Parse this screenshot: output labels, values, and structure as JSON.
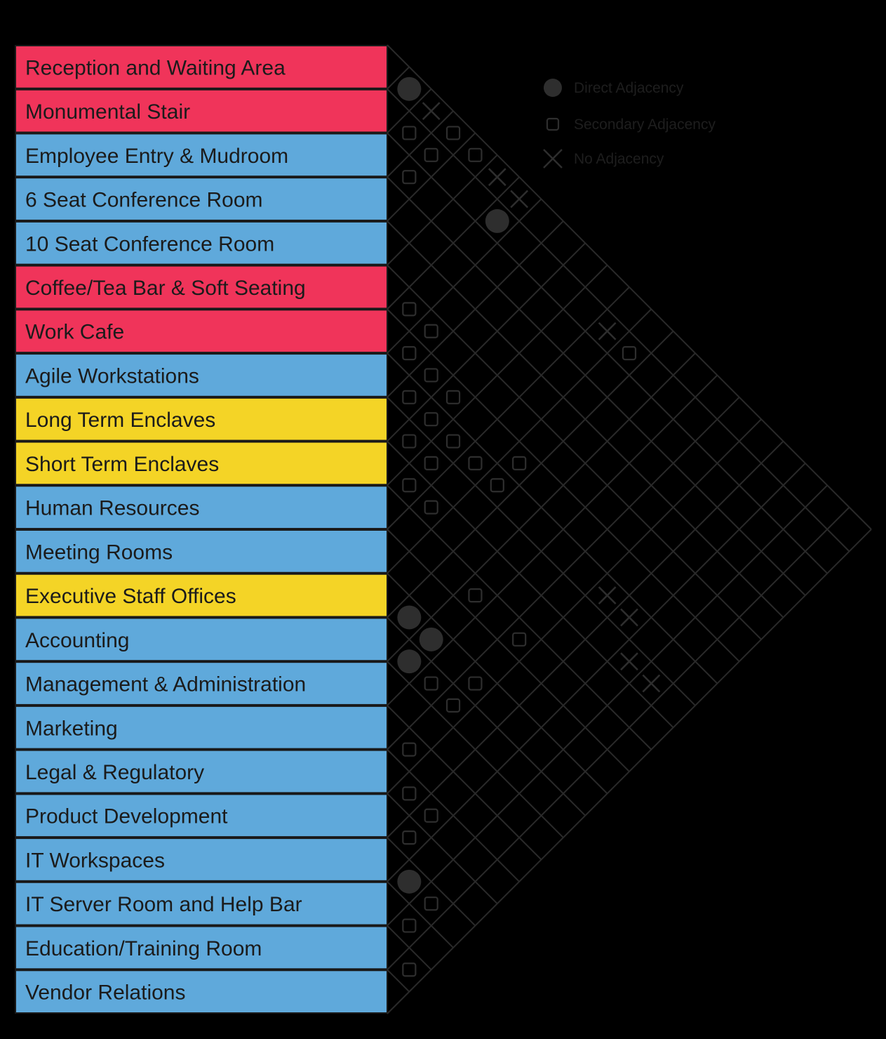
{
  "colors": {
    "background": "#000000",
    "red": "#f0345a",
    "blue": "#5fa9db",
    "yellow": "#f4d426",
    "grid": "#2a2a2a",
    "mark": "#2e2e2e"
  },
  "rooms": [
    {
      "label": "Reception and Waiting Area",
      "color": "red"
    },
    {
      "label": "Monumental Stair",
      "color": "red"
    },
    {
      "label": "Employee Entry & Mudroom",
      "color": "blue"
    },
    {
      "label": "6 Seat Conference Room",
      "color": "blue"
    },
    {
      "label": "10 Seat Conference Room",
      "color": "blue"
    },
    {
      "label": "Coffee/Tea Bar & Soft Seating",
      "color": "red"
    },
    {
      "label": "Work Cafe",
      "color": "red"
    },
    {
      "label": "Agile Workstations",
      "color": "blue"
    },
    {
      "label": "Long Term Enclaves",
      "color": "yellow"
    },
    {
      "label": "Short Term Enclaves",
      "color": "yellow"
    },
    {
      "label": "Human Resources",
      "color": "blue"
    },
    {
      "label": "Meeting Rooms",
      "color": "blue"
    },
    {
      "label": "Executive Staff Offices",
      "color": "yellow"
    },
    {
      "label": "Accounting",
      "color": "blue"
    },
    {
      "label": "Management & Administration",
      "color": "blue"
    },
    {
      "label": "Marketing",
      "color": "blue"
    },
    {
      "label": "Legal & Regulatory",
      "color": "blue"
    },
    {
      "label": "Product Development",
      "color": "blue"
    },
    {
      "label": "IT Workspaces",
      "color": "blue"
    },
    {
      "label": "IT Server Room and Help Bar",
      "color": "blue"
    },
    {
      "label": "Education/Training Room",
      "color": "blue"
    },
    {
      "label": "Vendor Relations",
      "color": "blue"
    }
  ],
  "legend": [
    {
      "symbol": "circle",
      "label": "Direct Adjacency",
      "icon": "filled-circle-icon"
    },
    {
      "symbol": "square",
      "label": "Secondary Adjacency",
      "icon": "rounded-square-icon"
    },
    {
      "symbol": "x",
      "label": "No Adjacency",
      "icon": "x-cross-icon"
    }
  ],
  "adjacencies": [
    {
      "a": 0,
      "b": 1,
      "type": "circle"
    },
    {
      "a": 0,
      "b": 2,
      "type": "x"
    },
    {
      "a": 0,
      "b": 3,
      "type": "square"
    },
    {
      "a": 0,
      "b": 4,
      "type": "square"
    },
    {
      "a": 0,
      "b": 5,
      "type": "x"
    },
    {
      "a": 0,
      "b": 6,
      "type": "x"
    },
    {
      "a": 1,
      "b": 2,
      "type": "square"
    },
    {
      "a": 1,
      "b": 3,
      "type": "square"
    },
    {
      "a": 1,
      "b": 6,
      "type": "circle"
    },
    {
      "a": 1,
      "b": 11,
      "type": "x"
    },
    {
      "a": 1,
      "b": 12,
      "type": "square"
    },
    {
      "a": 2,
      "b": 3,
      "type": "square"
    },
    {
      "a": 5,
      "b": 6,
      "type": "square"
    },
    {
      "a": 5,
      "b": 7,
      "type": "square"
    },
    {
      "a": 6,
      "b": 7,
      "type": "square"
    },
    {
      "a": 6,
      "b": 8,
      "type": "square"
    },
    {
      "a": 6,
      "b": 9,
      "type": "square"
    },
    {
      "a": 6,
      "b": 12,
      "type": "square"
    },
    {
      "a": 7,
      "b": 8,
      "type": "square"
    },
    {
      "a": 7,
      "b": 9,
      "type": "square"
    },
    {
      "a": 7,
      "b": 10,
      "type": "square"
    },
    {
      "a": 7,
      "b": 11,
      "type": "square"
    },
    {
      "a": 7,
      "b": 12,
      "type": "square"
    },
    {
      "a": 7,
      "b": 17,
      "type": "x"
    },
    {
      "a": 7,
      "b": 18,
      "type": "x"
    },
    {
      "a": 8,
      "b": 9,
      "type": "square"
    },
    {
      "a": 8,
      "b": 10,
      "type": "square"
    },
    {
      "a": 9,
      "b": 10,
      "type": "square"
    },
    {
      "a": 9,
      "b": 11,
      "type": "square"
    },
    {
      "a": 8,
      "b": 19,
      "type": "x"
    },
    {
      "a": 8,
      "b": 20,
      "type": "x"
    },
    {
      "a": 10,
      "b": 14,
      "type": "square"
    },
    {
      "a": 10,
      "b": 16,
      "type": "square"
    },
    {
      "a": 12,
      "b": 13,
      "type": "circle"
    },
    {
      "a": 12,
      "b": 16,
      "type": "square"
    },
    {
      "a": 12,
      "b": 14,
      "type": "circle"
    },
    {
      "a": 13,
      "b": 14,
      "type": "circle"
    },
    {
      "a": 13,
      "b": 15,
      "type": "square"
    },
    {
      "a": 13,
      "b": 16,
      "type": "square"
    },
    {
      "a": 15,
      "b": 16,
      "type": "square"
    },
    {
      "a": 16,
      "b": 17,
      "type": "square"
    },
    {
      "a": 16,
      "b": 18,
      "type": "square"
    },
    {
      "a": 17,
      "b": 18,
      "type": "square"
    },
    {
      "a": 18,
      "b": 19,
      "type": "circle"
    },
    {
      "a": 19,
      "b": 20,
      "type": "square"
    },
    {
      "a": 18,
      "b": 20,
      "type": "square"
    },
    {
      "a": 20,
      "b": 21,
      "type": "square"
    }
  ]
}
